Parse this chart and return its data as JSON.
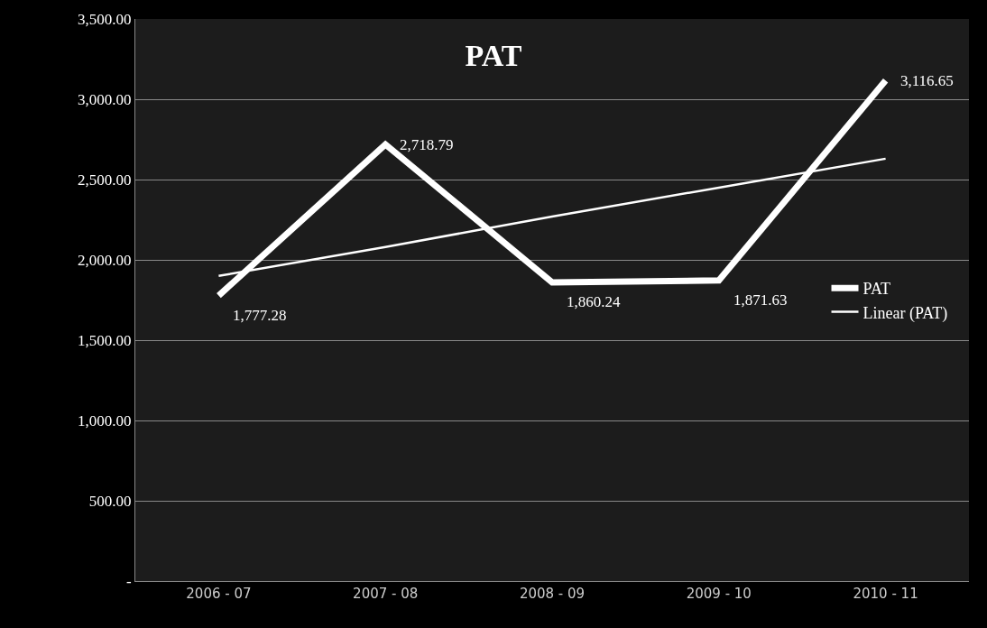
{
  "chart_data": {
    "type": "line",
    "title": "PAT",
    "categories": [
      "2006 - 07",
      "2007 - 08",
      "2008 - 09",
      "2009 - 10",
      "2010 - 11"
    ],
    "series": [
      {
        "name": "PAT",
        "color": "#ffffff",
        "values": [
          1777.28,
          2718.79,
          1860.24,
          1871.63,
          3116.65
        ],
        "value_labels": [
          "1,777.28",
          "2,718.79",
          "1,860.24",
          "1,871.63",
          "3,116.65"
        ]
      },
      {
        "name": "Linear (PAT)",
        "color": "#ffffff",
        "values": [
          1900,
          2080,
          2270,
          2450,
          2630
        ]
      }
    ],
    "ylim": [
      0,
      3500
    ],
    "yticks": [
      {
        "value": 0,
        "label": "-"
      },
      {
        "value": 500,
        "label": "500.00"
      },
      {
        "value": 1000,
        "label": "1,000.00"
      },
      {
        "value": 1500,
        "label": "1,500.00"
      },
      {
        "value": 2000,
        "label": "2,000.00"
      },
      {
        "value": 2500,
        "label": "2,500.00"
      },
      {
        "value": 3000,
        "label": "3,000.00"
      },
      {
        "value": 3500,
        "label": "3,500.00"
      }
    ],
    "grid": "y",
    "legend": "right",
    "marker": "none",
    "line_style": "solid"
  }
}
